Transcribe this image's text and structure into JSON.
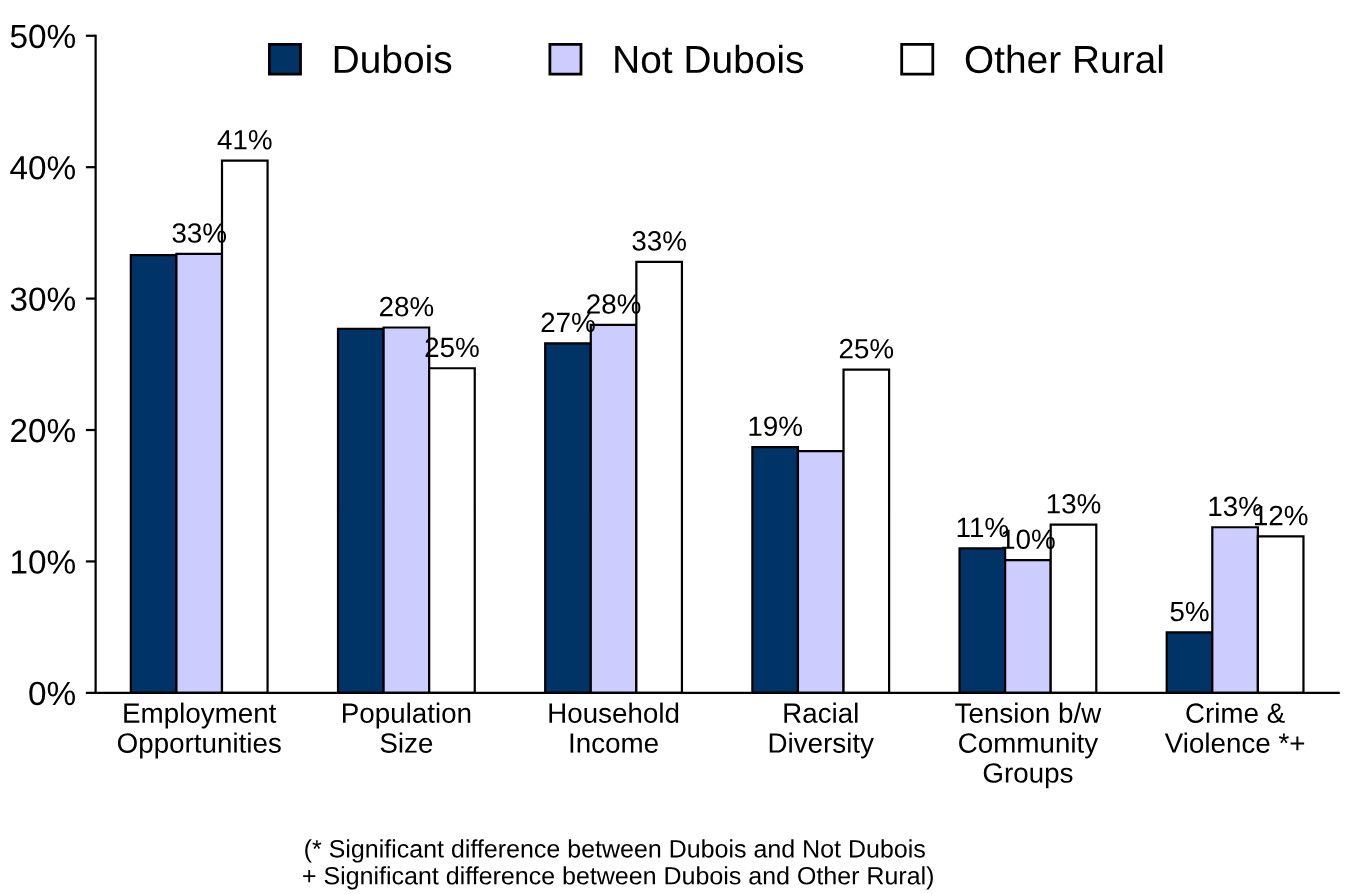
{
  "chart_data": {
    "type": "bar",
    "categories": [
      "Employment\nOpportunities",
      "Population\nSize",
      "Household\nIncome",
      "Racial\nDiversity",
      "Tension b/w\nCommunity\nGroups",
      "Crime &\nViolence *+"
    ],
    "series": [
      {
        "name": "Dubois",
        "color": "#003366",
        "values": [
          33.3,
          27.7,
          26.6,
          18.7,
          11.0,
          4.6
        ],
        "value_labels": [
          null,
          null,
          "27%",
          "19%",
          "11%",
          "5%"
        ]
      },
      {
        "name": "Not Dubois",
        "color": "#ccccff",
        "values": [
          33.4,
          27.8,
          28.0,
          18.4,
          10.1,
          12.6
        ],
        "value_labels": [
          "33%",
          "28%",
          "28%",
          null,
          "10%",
          "13%"
        ]
      },
      {
        "name": "Other Rural",
        "color": "#ffffff",
        "values": [
          40.5,
          24.7,
          32.8,
          24.6,
          12.8,
          11.9
        ],
        "value_labels": [
          "41%",
          "25%",
          "33%",
          "25%",
          "13%",
          "12%"
        ]
      }
    ],
    "ylim": [
      0,
      50
    ],
    "yticks": [
      {
        "value": 0,
        "label": "0%"
      },
      {
        "value": 10,
        "label": "10%"
      },
      {
        "value": 20,
        "label": "20%"
      },
      {
        "value": 30,
        "label": "30%"
      },
      {
        "value": 40,
        "label": "40%"
      },
      {
        "value": 50,
        "label": "50%"
      }
    ],
    "grid": false,
    "legend": "top",
    "annotations": [
      "(* Significant difference between Dubois and Not Dubois\n + Significant difference between Dubois and Other Rural)"
    ]
  }
}
